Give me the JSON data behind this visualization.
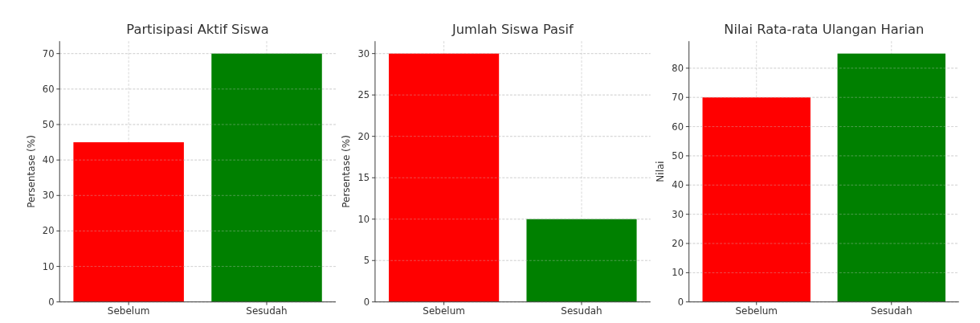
{
  "chart_data": [
    {
      "type": "bar",
      "title": "Partisipasi Aktif Siswa",
      "ylabel": "Persentase (%)",
      "categories": [
        "Sebelum",
        "Sesudah"
      ],
      "values": [
        45,
        70
      ],
      "colors": [
        "#ff0000",
        "#008000"
      ],
      "ylim": [
        0,
        73.5
      ],
      "yticks": [
        0,
        10,
        20,
        30,
        40,
        50,
        60,
        70
      ],
      "grid": true
    },
    {
      "type": "bar",
      "title": "Jumlah Siswa Pasif",
      "ylabel": "Persentase (%)",
      "categories": [
        "Sebelum",
        "Sesudah"
      ],
      "values": [
        30,
        10
      ],
      "colors": [
        "#ff0000",
        "#008000"
      ],
      "ylim": [
        0,
        31.5
      ],
      "yticks": [
        0,
        5,
        10,
        15,
        20,
        25,
        30
      ],
      "grid": true
    },
    {
      "type": "bar",
      "title": "Nilai Rata-rata Ulangan Harian",
      "ylabel": "Nilai",
      "categories": [
        "Sebelum",
        "Sesudah"
      ],
      "values": [
        70,
        85
      ],
      "colors": [
        "#ff0000",
        "#008000"
      ],
      "ylim": [
        0,
        89.25
      ],
      "yticks": [
        0,
        10,
        20,
        30,
        40,
        50,
        60,
        70,
        80
      ],
      "grid": true
    }
  ]
}
